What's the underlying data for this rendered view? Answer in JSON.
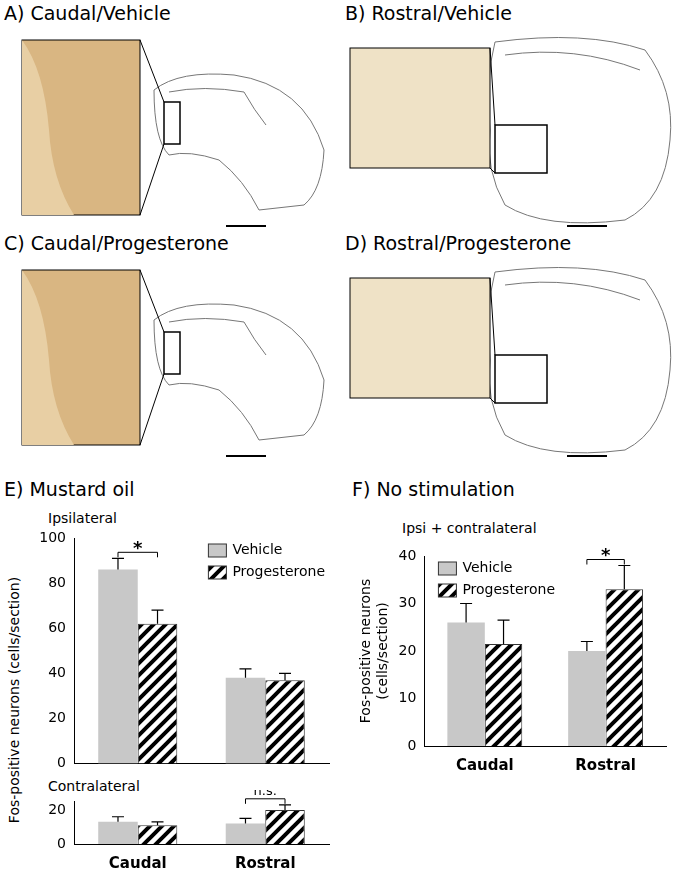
{
  "image_panels": [
    {
      "title": "A) Caudal/Vehicle"
    },
    {
      "title": "B) Rostral/Vehicle"
    },
    {
      "title": "C) Caudal/Progesterone"
    },
    {
      "title": "D) Rostral/Progesterone"
    }
  ],
  "chart_data": [
    {
      "type": "bar",
      "title": "E) Mustard oil",
      "subtitle": "Ipsilateral",
      "y_label": "Fos-positive neurons (cells/section)",
      "categories": [
        "Caudal",
        "Rostral"
      ],
      "series": [
        {
          "name": "Vehicle",
          "color": "#c8c8c8",
          "values": [
            86,
            38
          ],
          "errors": [
            5,
            4
          ]
        },
        {
          "name": "Progesterone",
          "color": "#000000",
          "values": [
            62,
            37
          ],
          "errors": [
            6,
            3
          ]
        }
      ],
      "ylim": [
        0,
        100
      ],
      "yticks": [
        0,
        20,
        40,
        60,
        80,
        100
      ],
      "grid": false,
      "legend": "upper right",
      "tick_labels": "y",
      "annotations": [
        {
          "text": "*",
          "category": "Caudal"
        }
      ]
    },
    {
      "type": "bar",
      "subtitle": "Contralateral",
      "categories": [
        "Caudal",
        "Rostral"
      ],
      "series": [
        {
          "name": "Vehicle",
          "color": "#c8c8c8",
          "values": [
            13,
            12
          ],
          "errors": [
            3,
            3
          ]
        },
        {
          "name": "Progesterone",
          "color": "#000000",
          "values": [
            11,
            20
          ],
          "errors": [
            2,
            3
          ]
        }
      ],
      "ylim": [
        0,
        25
      ],
      "yticks": [
        0,
        20
      ],
      "grid": false,
      "annotations": [
        {
          "text": "n.s.",
          "category": "Rostral"
        }
      ]
    },
    {
      "type": "bar",
      "title": "F) No stimulation",
      "subtitle": "Ipsi + contralateral",
      "y_label": "Fos-positive neurons\n(cells/section)",
      "categories": [
        "Caudal",
        "Rostral"
      ],
      "series": [
        {
          "name": "Vehicle",
          "color": "#c8c8c8",
          "values": [
            26,
            20
          ],
          "errors": [
            4,
            2
          ]
        },
        {
          "name": "Progesterone",
          "color": "#000000",
          "values": [
            21.5,
            33
          ],
          "errors": [
            5,
            5
          ]
        }
      ],
      "ylim": [
        0,
        40
      ],
      "yticks": [
        0,
        10,
        20,
        30,
        40
      ],
      "grid": false,
      "legend": "upper left",
      "annotations": [
        {
          "text": "*",
          "category": "Rostral"
        }
      ]
    }
  ]
}
